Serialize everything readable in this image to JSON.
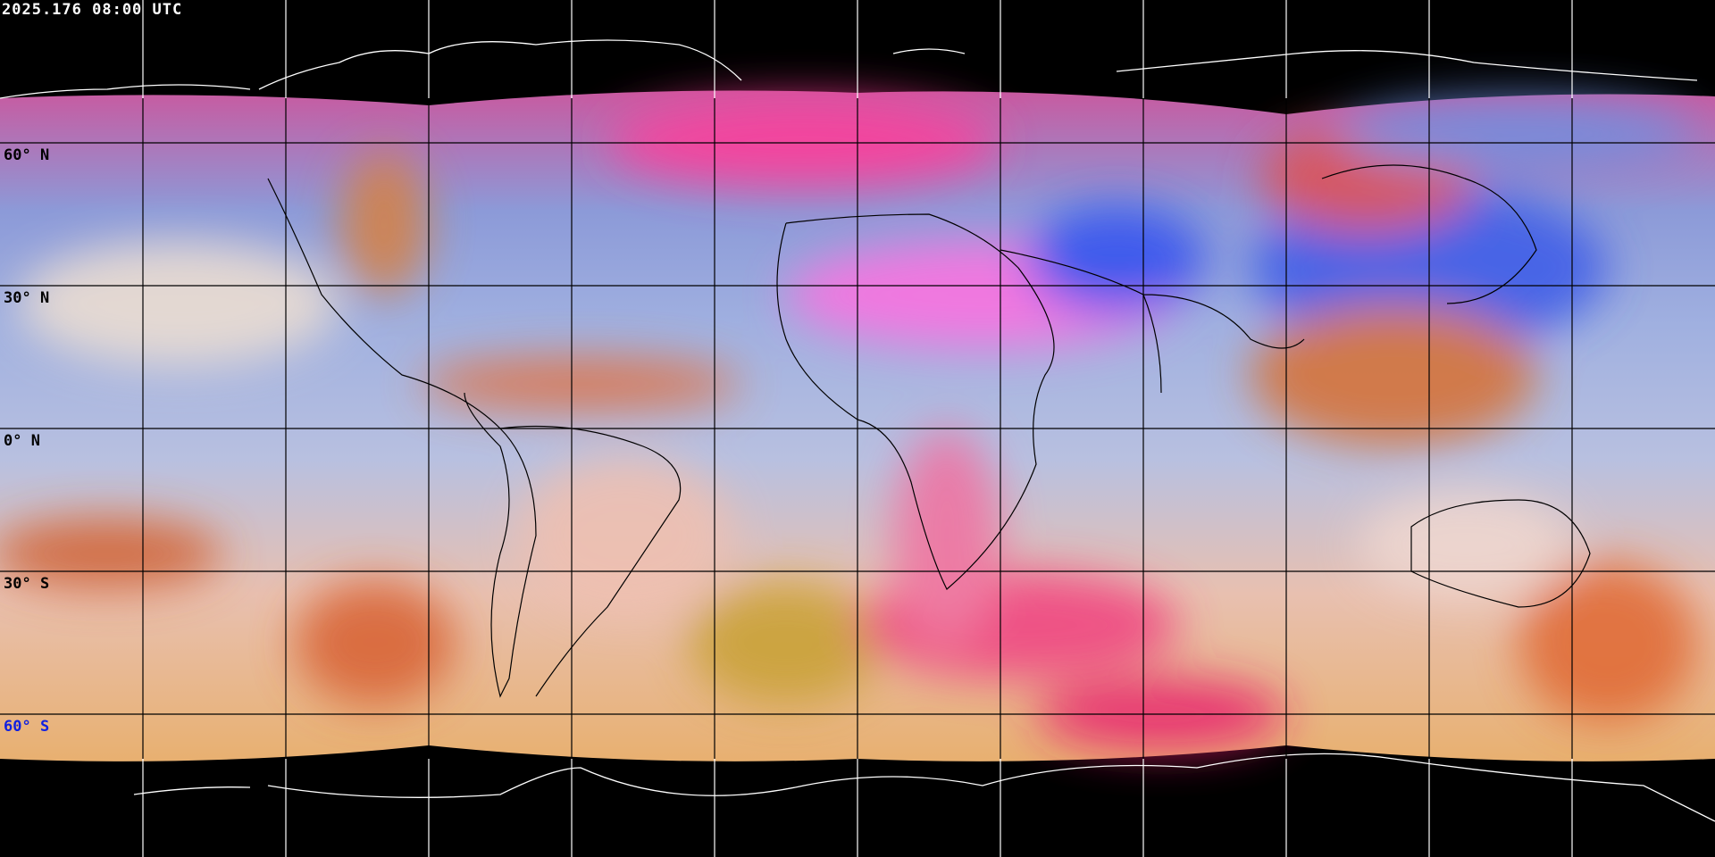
{
  "title": "2025.176 08:00 UTC",
  "latitude_labels": [
    {
      "label": "60° N",
      "lat": 60
    },
    {
      "label": "30° N",
      "lat": 30
    },
    {
      "label": "0° N",
      "lat": 0
    },
    {
      "label": "30° S",
      "lat": -30
    },
    {
      "label": "60° S",
      "lat": -60,
      "color": "#1020e0"
    }
  ],
  "grid": {
    "longitude_step_deg": 30,
    "latitude_step_deg": 30,
    "color_over_image": "#000000",
    "color_over_background": "#ffffff"
  },
  "coastline_color": "#ffffff"
}
